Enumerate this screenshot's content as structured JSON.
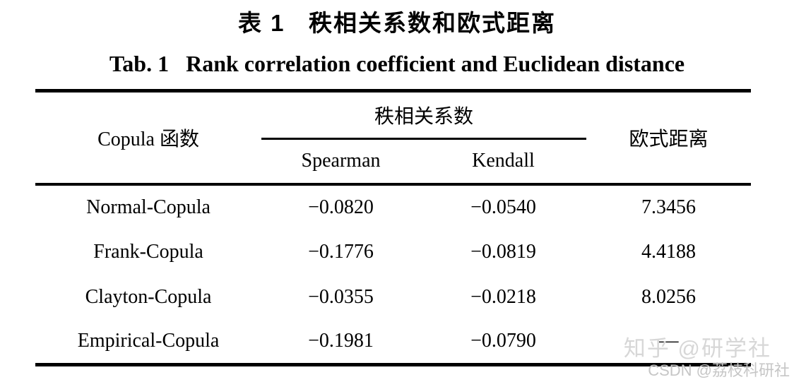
{
  "page": {
    "title_zh": "表 1   秩相关系数和欧式距离",
    "title_en": "Tab. 1   Rank correlation coefficient and Euclidean distance"
  },
  "table": {
    "headers": {
      "copula": "Copula 函数",
      "rank_group": "秩相关系数",
      "spearman": "Spearman",
      "kendall": "Kendall",
      "euclidean": "欧式距离"
    },
    "rows": [
      {
        "name": "Normal-Copula",
        "spearman": "−0.0820",
        "kendall": "−0.0540",
        "euclidean": "7.3456"
      },
      {
        "name": "Frank-Copula",
        "spearman": "−0.1776",
        "kendall": "−0.0819",
        "euclidean": "4.4188"
      },
      {
        "name": "Clayton-Copula",
        "spearman": "−0.0355",
        "kendall": "−0.0218",
        "euclidean": "8.0256"
      },
      {
        "name": "Empirical-Copula",
        "spearman": "−0.1981",
        "kendall": "−0.0790",
        "euclidean": "—"
      }
    ]
  },
  "watermarks": {
    "zhihu": "知乎 @研学社",
    "csdn": "CSDN @荔枝科研社"
  }
}
